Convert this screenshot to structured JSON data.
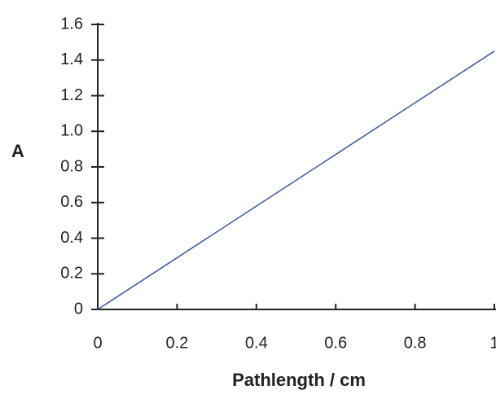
{
  "chart_data": {
    "type": "line",
    "x_label": "Pathlength / cm",
    "y_label": "A",
    "x": [
      0,
      0.2,
      0.4,
      0.6,
      0.8,
      1
    ],
    "series": [
      {
        "color": "#3b5b9e",
        "values": [
          0,
          0.29,
          0.58,
          0.87,
          1.16,
          1.45
        ]
      }
    ],
    "xlim": [
      0,
      1
    ],
    "ylim": [
      0,
      1.6
    ],
    "xticks": [
      0,
      0.2,
      0.4,
      0.6,
      0.8,
      1
    ],
    "yticks": [
      0,
      0.2,
      0.4,
      0.6,
      0.8,
      {
        "value": 1,
        "label": "1.0"
      },
      1.2,
      1.4,
      1.6
    ]
  }
}
